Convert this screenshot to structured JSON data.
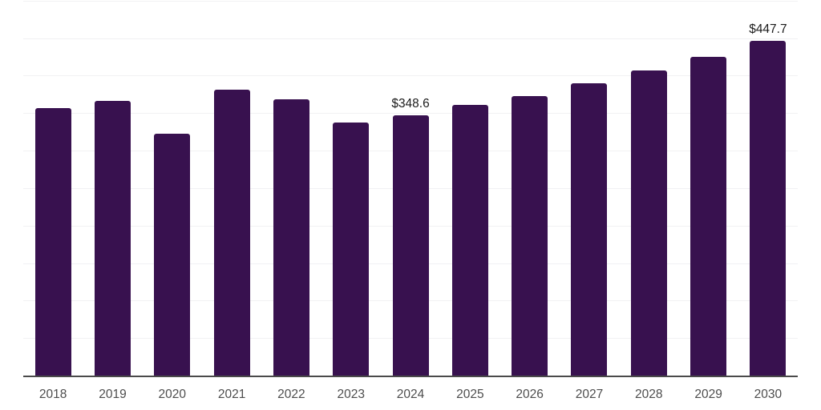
{
  "chart_data": {
    "type": "bar",
    "title": "",
    "xlabel": "",
    "ylabel": "",
    "categories": [
      "2018",
      "2019",
      "2020",
      "2021",
      "2022",
      "2023",
      "2024",
      "2025",
      "2026",
      "2027",
      "2028",
      "2029",
      "2030"
    ],
    "values": [
      357.2,
      367.3,
      323.0,
      382.6,
      369.4,
      338.8,
      348.6,
      362.0,
      373.7,
      390.8,
      407.5,
      426.0,
      447.7
    ],
    "visible_value_labels": {
      "2024": "$348.6",
      "2030": "$447.7"
    },
    "ylim": [
      0,
      500
    ],
    "grid_step": 50,
    "grid": "horizontal",
    "legend_position": "none",
    "colors": {
      "bar": "#38114f",
      "gridline": "#f1f1f3",
      "axis_line": "#4a4a4a",
      "tick_label": "#4d4d4d",
      "data_label": "#1c1c1c",
      "background": "#ffffff"
    }
  }
}
